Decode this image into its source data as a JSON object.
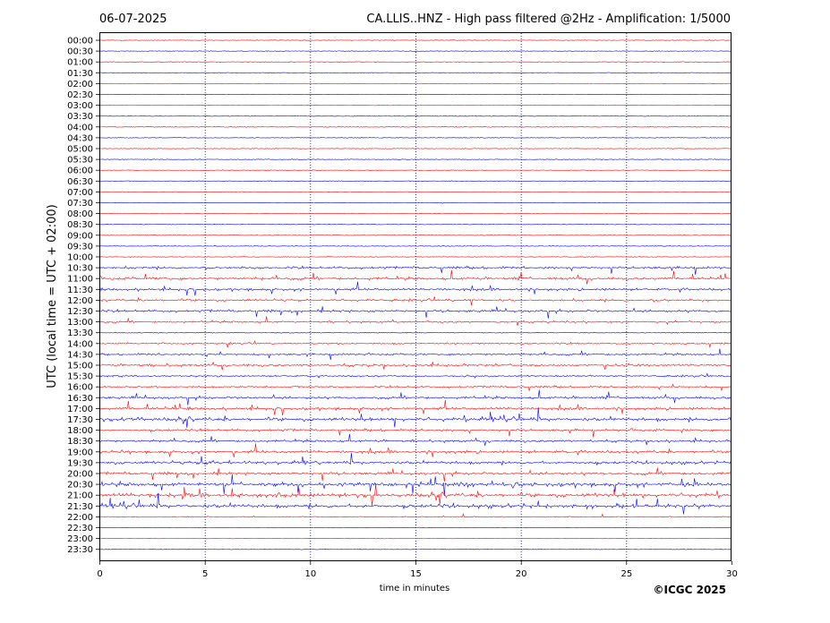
{
  "header": {
    "date": "06-07-2025",
    "title": "CA.LLIS..HNZ - High pass filtered @2Hz - Amplification: 1/5000"
  },
  "footer": {
    "copyright": "©ICGC 2025"
  },
  "colors": {
    "trace_a": "#ff0000",
    "trace_b": "#0000ff",
    "axis": "#000000",
    "grid": "#000080"
  },
  "chart_data": {
    "type": "line",
    "title": "CA.LLIS..HNZ - High pass filtered @2Hz - Amplification: 1/5000",
    "xlabel": "time in minutes",
    "ylabel": "UTC (local time = UTC + 02:00)",
    "xlim": [
      0,
      30
    ],
    "x_ticks": [
      "0",
      "5",
      "10",
      "15",
      "20",
      "25",
      "30"
    ],
    "vertical_grid_minutes": [
      5,
      10,
      15,
      20,
      25
    ],
    "grid": "vertical dotted",
    "row_labels": [
      "00:00",
      "00:30",
      "01:00",
      "01:30",
      "02:00",
      "02:30",
      "03:00",
      "03:30",
      "04:00",
      "04:30",
      "05:00",
      "05:30",
      "06:00",
      "06:30",
      "07:00",
      "07:30",
      "08:00",
      "08:30",
      "09:00",
      "09:30",
      "10:00",
      "10:30",
      "11:00",
      "11:30",
      "12:00",
      "12:30",
      "13:00",
      "13:30",
      "14:00",
      "14:30",
      "15:00",
      "15:30",
      "16:00",
      "16:30",
      "17:00",
      "17:30",
      "18:00",
      "18:30",
      "19:00",
      "19:30",
      "20:00",
      "20:30",
      "21:00",
      "21:30",
      "22:00",
      "22:30",
      "23:00",
      "23:30"
    ],
    "trace_colors_alternating": [
      "red",
      "blue"
    ],
    "relative_activity": [
      0.02,
      0.02,
      0.02,
      0.02,
      0.02,
      0.02,
      0.03,
      0.03,
      0.04,
      0.03,
      0.03,
      0.04,
      0.04,
      0.05,
      0.05,
      0.04,
      0.03,
      0.03,
      0.03,
      0.03,
      0.05,
      0.45,
      0.55,
      0.5,
      0.45,
      0.5,
      0.35,
      0.1,
      0.3,
      0.35,
      0.45,
      0.3,
      0.35,
      0.5,
      0.55,
      0.75,
      0.45,
      0.45,
      0.55,
      0.6,
      0.55,
      0.85,
      0.85,
      0.8,
      0.15,
      0.03,
      0.03,
      0.03
    ]
  }
}
